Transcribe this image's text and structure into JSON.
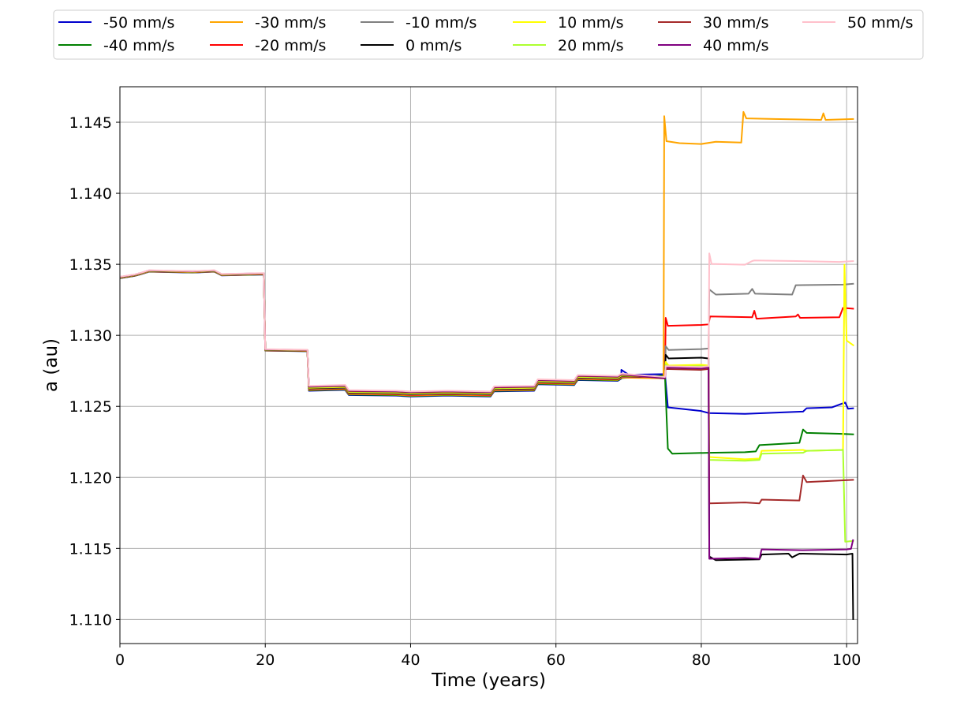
{
  "chart_data": {
    "type": "line",
    "title": "",
    "xlabel": "Time (years)",
    "ylabel": "a (au)",
    "xlim": [
      0,
      101.5
    ],
    "ylim": [
      1.1083,
      1.1475
    ],
    "xticks": [
      0,
      20,
      40,
      60,
      80,
      100
    ],
    "yticks": [
      1.11,
      1.115,
      1.12,
      1.125,
      1.13,
      1.135,
      1.14,
      1.145
    ],
    "xtick_labels": [
      "0",
      "20",
      "40",
      "60",
      "80",
      "100"
    ],
    "ytick_labels": [
      "1.110",
      "1.115",
      "1.120",
      "1.125",
      "1.130",
      "1.135",
      "1.140",
      "1.145"
    ],
    "grid": true,
    "legend_position": "top-center, outside plot, 6 columns",
    "series": [
      {
        "name": "-50 mm/s",
        "color": "#0000cd",
        "late_points": [
          [
            69,
            1.1276
          ],
          [
            70,
            1.1272
          ],
          [
            75,
            1.1273
          ],
          [
            75.4,
            1.1249
          ],
          [
            80,
            1.1247
          ],
          [
            81,
            1.1245
          ],
          [
            86,
            1.1245
          ],
          [
            94,
            1.1246
          ],
          [
            94.5,
            1.1249
          ],
          [
            98,
            1.1249
          ],
          [
            99.8,
            1.1253
          ],
          [
            100.2,
            1.1248
          ],
          [
            101,
            1.1249
          ]
        ]
      },
      {
        "name": "-40 mm/s",
        "color": "#008000",
        "late_points": [
          [
            75,
            1.1272
          ],
          [
            75.4,
            1.122
          ],
          [
            76,
            1.1217
          ],
          [
            81,
            1.1217
          ],
          [
            86,
            1.1218
          ],
          [
            87.5,
            1.1218
          ],
          [
            88,
            1.1223
          ],
          [
            93.5,
            1.1224
          ],
          [
            94,
            1.1234
          ],
          [
            94.5,
            1.1231
          ],
          [
            99,
            1.1231
          ],
          [
            101,
            1.123
          ]
        ]
      },
      {
        "name": "-30 mm/s",
        "color": "#ffa500",
        "late_points": [
          [
            74.8,
            1.127
          ],
          [
            74.9,
            1.1454
          ],
          [
            75.2,
            1.1437
          ],
          [
            77,
            1.1435
          ],
          [
            80,
            1.1435
          ],
          [
            82,
            1.1436
          ],
          [
            85.5,
            1.1436
          ],
          [
            85.8,
            1.1457
          ],
          [
            86.2,
            1.1453
          ],
          [
            90,
            1.1452
          ],
          [
            96.5,
            1.1452
          ],
          [
            96.8,
            1.1456
          ],
          [
            97.1,
            1.1452
          ],
          [
            101,
            1.1452
          ]
        ]
      },
      {
        "name": "-20 mm/s",
        "color": "#ff0000",
        "late_points": [
          [
            75,
            1.1271
          ],
          [
            75.1,
            1.1312
          ],
          [
            75.4,
            1.1307
          ],
          [
            80,
            1.1307
          ],
          [
            81,
            1.1308
          ],
          [
            81.2,
            1.1313
          ],
          [
            87,
            1.1313
          ],
          [
            87.3,
            1.1317
          ],
          [
            87.6,
            1.1312
          ],
          [
            93,
            1.1313
          ],
          [
            93.3,
            1.1315
          ],
          [
            93.6,
            1.1312
          ],
          [
            99,
            1.1313
          ],
          [
            99.5,
            1.1319
          ],
          [
            101,
            1.1319
          ]
        ]
      },
      {
        "name": "-10 mm/s",
        "color": "#808080",
        "late_points": [
          [
            75,
            1.1271
          ],
          [
            75.1,
            1.1292
          ],
          [
            75.5,
            1.129
          ],
          [
            80,
            1.129
          ],
          [
            81,
            1.1291
          ],
          [
            81.1,
            1.1332
          ],
          [
            82,
            1.1329
          ],
          [
            86.5,
            1.1329
          ],
          [
            87,
            1.1333
          ],
          [
            87.4,
            1.1329
          ],
          [
            92.5,
            1.1329
          ],
          [
            93,
            1.1335
          ],
          [
            99.5,
            1.1336
          ],
          [
            101,
            1.1336
          ]
        ]
      },
      {
        "name": "0 mm/s",
        "color": "#000000",
        "late_points": [
          [
            75,
            1.1271
          ],
          [
            75.1,
            1.1286
          ],
          [
            75.5,
            1.1284
          ],
          [
            80,
            1.1284
          ],
          [
            81,
            1.1284
          ],
          [
            81.1,
            1.1144
          ],
          [
            82,
            1.1142
          ],
          [
            88,
            1.1142
          ],
          [
            88.3,
            1.1146
          ],
          [
            92,
            1.1146
          ],
          [
            92.5,
            1.1144
          ],
          [
            93.5,
            1.1146
          ],
          [
            100,
            1.1146
          ],
          [
            100.8,
            1.1146
          ],
          [
            100.9,
            1.11
          ]
        ]
      },
      {
        "name": "10 mm/s",
        "color": "#ffff00",
        "late_points": [
          [
            75,
            1.1271
          ],
          [
            75.1,
            1.1281
          ],
          [
            75.5,
            1.1279
          ],
          [
            80,
            1.1279
          ],
          [
            81,
            1.1279
          ],
          [
            81.1,
            1.1214
          ],
          [
            86,
            1.1213
          ],
          [
            88,
            1.1213
          ],
          [
            88.3,
            1.1219
          ],
          [
            94,
            1.1219
          ],
          [
            94.5,
            1.1219
          ],
          [
            99.5,
            1.1219
          ],
          [
            99.7,
            1.135
          ],
          [
            100,
            1.1296
          ],
          [
            101,
            1.1293
          ]
        ]
      },
      {
        "name": "20 mm/s",
        "color": "#adff2f",
        "late_points": [
          [
            75,
            1.1271
          ],
          [
            75.1,
            1.1279
          ],
          [
            75.5,
            1.1278
          ],
          [
            80,
            1.1278
          ],
          [
            81,
            1.1278
          ],
          [
            81.1,
            1.1212
          ],
          [
            86,
            1.1212
          ],
          [
            88,
            1.1212
          ],
          [
            88.3,
            1.1217
          ],
          [
            94,
            1.1217
          ],
          [
            94.5,
            1.1219
          ],
          [
            99.5,
            1.1219
          ],
          [
            99.8,
            1.1155
          ],
          [
            101,
            1.1155
          ]
        ]
      },
      {
        "name": "30 mm/s",
        "color": "#a52a2a",
        "late_points": [
          [
            75,
            1.127
          ],
          [
            75.1,
            1.1276
          ],
          [
            80,
            1.1276
          ],
          [
            81,
            1.1276
          ],
          [
            81.1,
            1.1182
          ],
          [
            86,
            1.1182
          ],
          [
            88,
            1.1182
          ],
          [
            88.3,
            1.1184
          ],
          [
            93.5,
            1.1184
          ],
          [
            94,
            1.1201
          ],
          [
            94.5,
            1.1197
          ],
          [
            101,
            1.1198
          ]
        ]
      },
      {
        "name": "40 mm/s",
        "color": "#800080",
        "late_points": [
          [
            75,
            1.127
          ],
          [
            75.1,
            1.1277
          ],
          [
            80,
            1.1277
          ],
          [
            81,
            1.1277
          ],
          [
            81.1,
            1.1143
          ],
          [
            86,
            1.1143
          ],
          [
            88,
            1.1143
          ],
          [
            88.3,
            1.1149
          ],
          [
            94,
            1.1149
          ],
          [
            100,
            1.1149
          ],
          [
            100.6,
            1.115
          ],
          [
            100.9,
            1.1156
          ]
        ]
      },
      {
        "name": "50 mm/s",
        "color": "#ffc0cb",
        "late_points": [
          [
            75,
            1.1271
          ],
          [
            75.1,
            1.1278
          ],
          [
            80,
            1.1278
          ],
          [
            81,
            1.1278
          ],
          [
            81.1,
            1.1358
          ],
          [
            81.4,
            1.135
          ],
          [
            86,
            1.135
          ],
          [
            87,
            1.1352
          ],
          [
            87.3,
            1.1353
          ],
          [
            93,
            1.1352
          ],
          [
            99,
            1.1352
          ],
          [
            101,
            1.1352
          ]
        ]
      }
    ],
    "shared_early": [
      [
        0,
        1.1341
      ],
      [
        2,
        1.1342
      ],
      [
        3,
        1.1344
      ],
      [
        4,
        1.1345
      ],
      [
        10,
        1.1345
      ],
      [
        13,
        1.1345
      ],
      [
        14,
        1.1343
      ],
      [
        19.8,
        1.1343
      ],
      [
        20,
        1.129
      ],
      [
        25.8,
        1.1289
      ],
      [
        26,
        1.1263
      ],
      [
        31,
        1.1263
      ],
      [
        31.5,
        1.126
      ],
      [
        38,
        1.1259
      ],
      [
        40,
        1.1259
      ],
      [
        45,
        1.1259
      ],
      [
        51,
        1.1259
      ],
      [
        51.5,
        1.1262
      ],
      [
        57,
        1.1263
      ],
      [
        57.5,
        1.1267
      ],
      [
        62.5,
        1.1267
      ],
      [
        63,
        1.127
      ],
      [
        68.5,
        1.127
      ],
      [
        69,
        1.1271
      ],
      [
        75,
        1.1271
      ]
    ]
  }
}
